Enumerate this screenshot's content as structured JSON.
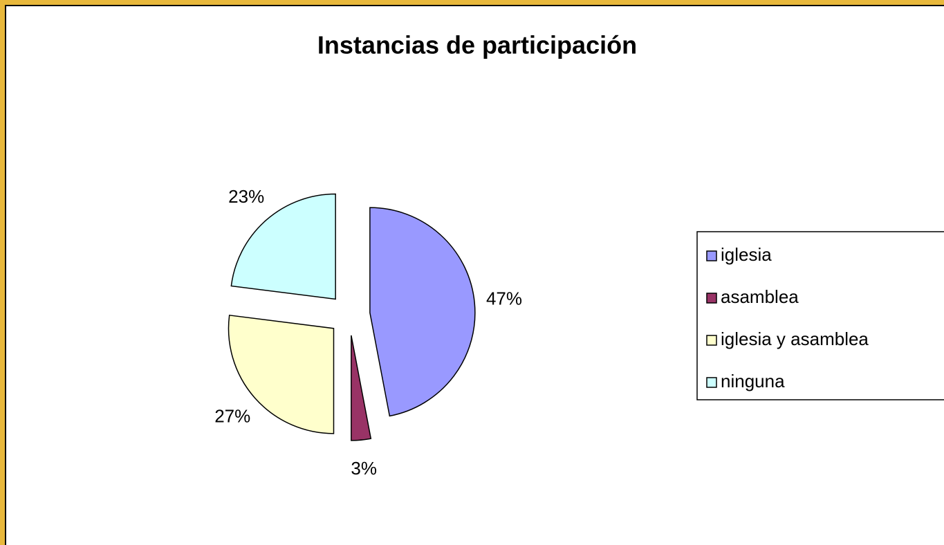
{
  "chart_data": {
    "type": "pie",
    "title": "Instancias de participación",
    "categories": [
      "iglesia",
      "asamblea",
      "iglesia y asamblea",
      "ninguna"
    ],
    "values": [
      47,
      3,
      27,
      23
    ],
    "value_labels": [
      "47%",
      "3%",
      "27%",
      "23%"
    ],
    "colors": [
      "#9999ff",
      "#993366",
      "#ffffcc",
      "#ccffff"
    ],
    "legend": "right"
  }
}
